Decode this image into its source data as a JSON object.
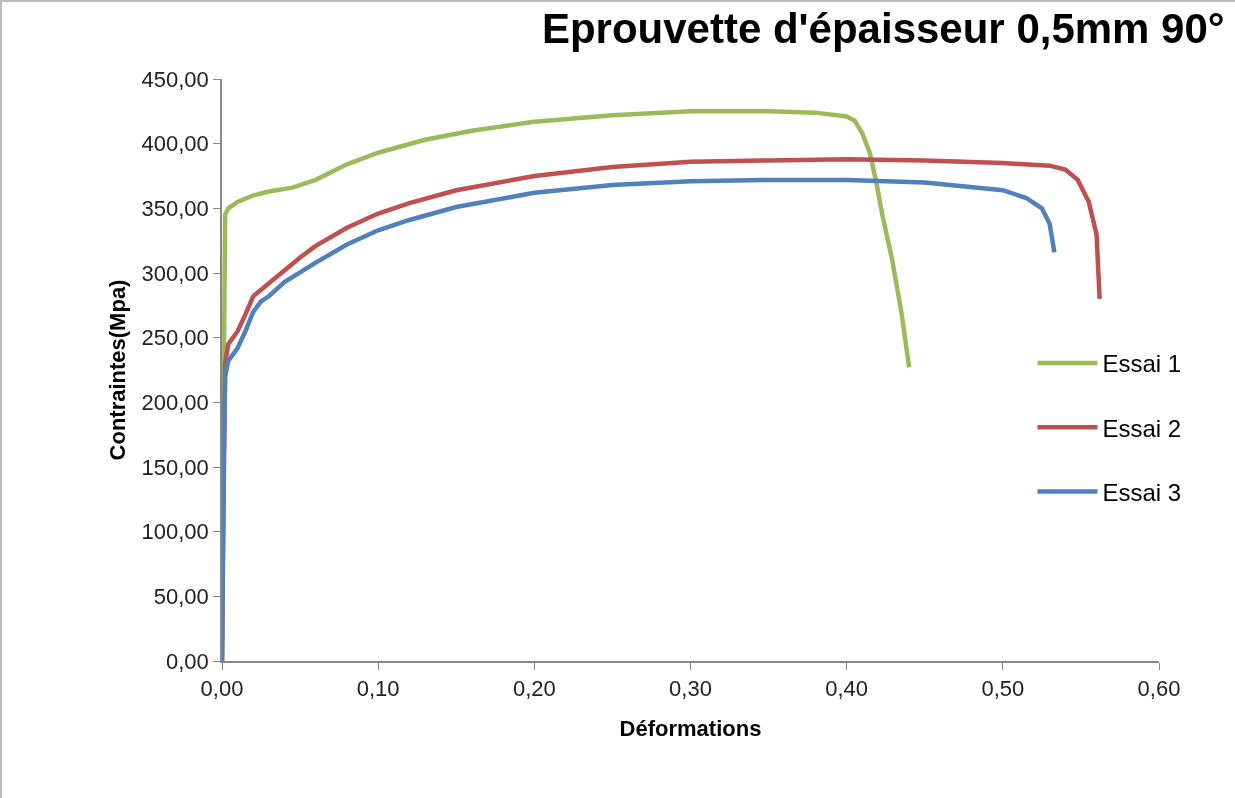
{
  "chart_data": {
    "type": "line",
    "title": "Eprouvette d'épaisseur 0,5mm 90°",
    "xlabel": "Déformations",
    "ylabel": "Contraintes(Mpa)",
    "xlim": [
      0,
      0.6
    ],
    "ylim": [
      0,
      450
    ],
    "xticks": [
      {
        "value": 0,
        "label": "0,00"
      },
      {
        "value": 0.1,
        "label": "0,10"
      },
      {
        "value": 0.2,
        "label": "0,20"
      },
      {
        "value": 0.3,
        "label": "0,30"
      },
      {
        "value": 0.4,
        "label": "0,40"
      },
      {
        "value": 0.5,
        "label": "0,50"
      },
      {
        "value": 0.6,
        "label": "0,60"
      }
    ],
    "yticks": [
      {
        "value": 0,
        "label": "0,00"
      },
      {
        "value": 50,
        "label": "50,00"
      },
      {
        "value": 100,
        "label": "100,00"
      },
      {
        "value": 150,
        "label": "150,00"
      },
      {
        "value": 200,
        "label": "200,00"
      },
      {
        "value": 250,
        "label": "250,00"
      },
      {
        "value": 300,
        "label": "300,00"
      },
      {
        "value": 350,
        "label": "350,00"
      },
      {
        "value": 400,
        "label": "400,00"
      },
      {
        "value": 450,
        "label": "450,00"
      }
    ],
    "grid": false,
    "legend": "right",
    "marker": "none",
    "line_style": "solid",
    "series": [
      {
        "name": "Essai 1",
        "color": "#9bbb59",
        "x": [
          0,
          0.001,
          0.002,
          0.004,
          0.01,
          0.02,
          0.03,
          0.045,
          0.06,
          0.08,
          0.1,
          0.13,
          0.16,
          0.2,
          0.25,
          0.3,
          0.35,
          0.38,
          0.4,
          0.405,
          0.41,
          0.415,
          0.419,
          0.423,
          0.429,
          0.435,
          0.44
        ],
        "values": [
          0,
          200,
          345,
          350,
          355,
          360,
          363,
          366,
          372,
          384,
          393,
          403,
          410,
          417,
          422,
          425,
          425,
          424,
          421,
          418,
          408,
          392,
          370,
          344,
          311,
          270,
          227
        ]
      },
      {
        "name": "Essai 2",
        "color": "#c0504d",
        "x": [
          0,
          0.001,
          0.002,
          0.004,
          0.01,
          0.015,
          0.02,
          0.03,
          0.04,
          0.05,
          0.06,
          0.08,
          0.1,
          0.12,
          0.15,
          0.2,
          0.25,
          0.3,
          0.35,
          0.4,
          0.45,
          0.5,
          0.53,
          0.54,
          0.548,
          0.555,
          0.56,
          0.562
        ],
        "values": [
          0,
          120,
          230,
          245,
          255,
          268,
          282,
          292,
          302,
          312,
          321,
          335,
          346,
          354,
          364,
          375,
          382,
          386,
          387,
          388,
          387,
          385,
          383,
          380,
          372,
          355,
          330,
          280
        ]
      },
      {
        "name": "Essai 3",
        "color": "#4f81bd",
        "x": [
          0,
          0.001,
          0.002,
          0.004,
          0.01,
          0.015,
          0.02,
          0.025,
          0.03,
          0.04,
          0.06,
          0.08,
          0.1,
          0.12,
          0.15,
          0.2,
          0.25,
          0.3,
          0.35,
          0.4,
          0.45,
          0.5,
          0.515,
          0.525,
          0.53,
          0.533
        ],
        "values": [
          0,
          150,
          220,
          232,
          242,
          255,
          270,
          278,
          282,
          293,
          308,
          322,
          333,
          341,
          351,
          362,
          368,
          371,
          372,
          372,
          370,
          364,
          358,
          350,
          338,
          316
        ]
      }
    ]
  }
}
